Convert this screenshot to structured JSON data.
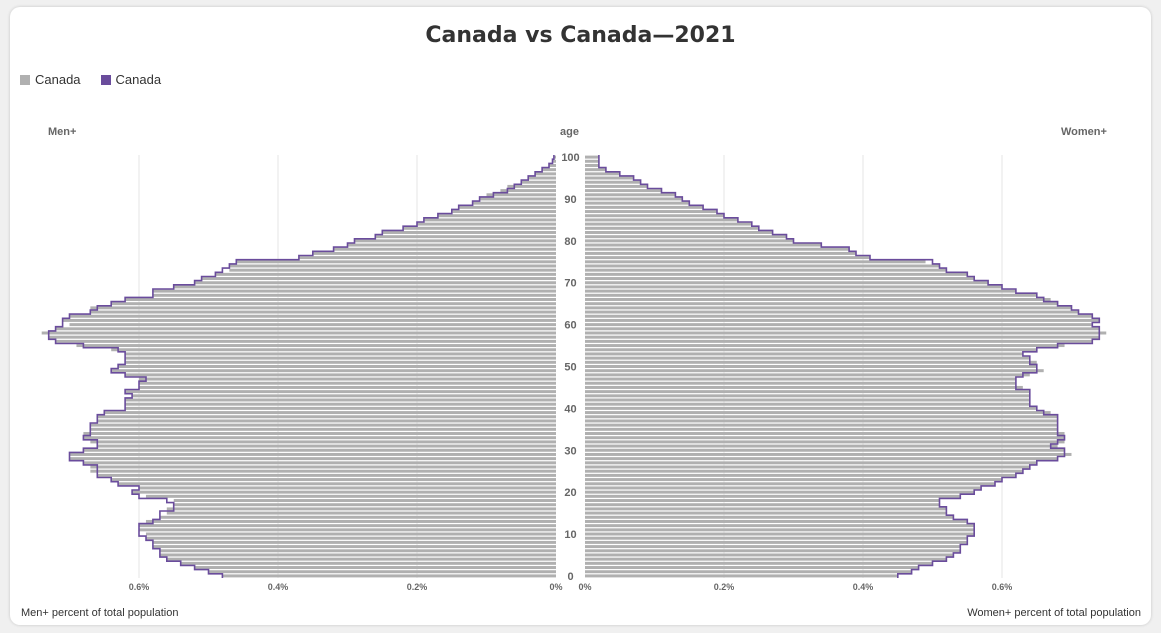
{
  "title": "Canada vs Canada—2021",
  "legend": [
    {
      "name": "Canada",
      "color": "#b0b0b0",
      "style": "filled"
    },
    {
      "name": "Canada",
      "color": "#6a4c9c",
      "style": "outline"
    }
  ],
  "headers": {
    "left": "Men+",
    "center": "age",
    "right": "Women+"
  },
  "footer": {
    "left": "Men+ percent of total population",
    "right": "Women+ percent of total population"
  },
  "chart_data": {
    "type": "bar",
    "orientation": "population-pyramid",
    "y_ticks": [
      "0",
      "10",
      "20",
      "30",
      "40",
      "50",
      "60",
      "70",
      "80",
      "90",
      "100"
    ],
    "x_ticks_left": [
      "0.6%",
      "0.4%",
      "0.2%",
      "0%"
    ],
    "x_ticks_right": [
      "0%",
      "0.2%",
      "0.4%",
      "0.6%"
    ],
    "xlim": [
      0,
      0.75
    ],
    "ages": [
      0,
      1,
      2,
      3,
      4,
      5,
      6,
      7,
      8,
      9,
      10,
      11,
      12,
      13,
      14,
      15,
      16,
      17,
      18,
      19,
      20,
      21,
      22,
      23,
      24,
      25,
      26,
      27,
      28,
      29,
      30,
      31,
      32,
      33,
      34,
      35,
      36,
      37,
      38,
      39,
      40,
      41,
      42,
      43,
      44,
      45,
      46,
      47,
      48,
      49,
      50,
      51,
      52,
      53,
      54,
      55,
      56,
      57,
      58,
      59,
      60,
      61,
      62,
      63,
      64,
      65,
      66,
      67,
      68,
      69,
      70,
      71,
      72,
      73,
      74,
      75,
      76,
      77,
      78,
      79,
      80,
      81,
      82,
      83,
      84,
      85,
      86,
      87,
      88,
      89,
      90,
      91,
      92,
      93,
      94,
      95,
      96,
      97,
      98,
      99,
      100
    ],
    "series": [
      {
        "name": "Canada",
        "side": "men",
        "values": [
          0.48,
          0.5,
          0.52,
          0.54,
          0.56,
          0.57,
          0.57,
          0.58,
          0.58,
          0.59,
          0.59,
          0.6,
          0.6,
          0.59,
          0.57,
          0.56,
          0.56,
          0.55,
          0.55,
          0.59,
          0.61,
          0.6,
          0.63,
          0.64,
          0.66,
          0.67,
          0.67,
          0.68,
          0.7,
          0.7,
          0.68,
          0.66,
          0.67,
          0.68,
          0.68,
          0.67,
          0.67,
          0.66,
          0.66,
          0.65,
          0.62,
          0.62,
          0.62,
          0.61,
          0.62,
          0.6,
          0.6,
          0.6,
          0.62,
          0.64,
          0.63,
          0.62,
          0.62,
          0.62,
          0.64,
          0.69,
          0.72,
          0.73,
          0.74,
          0.72,
          0.7,
          0.71,
          0.7,
          0.67,
          0.67,
          0.64,
          0.62,
          0.58,
          0.58,
          0.55,
          0.52,
          0.51,
          0.49,
          0.47,
          0.47,
          0.46,
          0.37,
          0.35,
          0.32,
          0.3,
          0.29,
          0.26,
          0.25,
          0.22,
          0.2,
          0.19,
          0.17,
          0.15,
          0.14,
          0.12,
          0.11,
          0.1,
          0.08,
          0.07,
          0.05,
          0.04,
          0.03,
          0.02,
          0.01,
          0.005,
          0.003
        ]
      },
      {
        "name": "Canada",
        "side": "women",
        "values": [
          0.45,
          0.47,
          0.48,
          0.5,
          0.52,
          0.53,
          0.54,
          0.54,
          0.55,
          0.55,
          0.56,
          0.56,
          0.56,
          0.55,
          0.53,
          0.52,
          0.52,
          0.51,
          0.51,
          0.54,
          0.56,
          0.57,
          0.59,
          0.6,
          0.62,
          0.63,
          0.64,
          0.65,
          0.68,
          0.7,
          0.69,
          0.68,
          0.69,
          0.69,
          0.69,
          0.68,
          0.68,
          0.68,
          0.68,
          0.67,
          0.65,
          0.64,
          0.64,
          0.64,
          0.64,
          0.63,
          0.62,
          0.62,
          0.64,
          0.66,
          0.65,
          0.65,
          0.64,
          0.63,
          0.65,
          0.69,
          0.73,
          0.74,
          0.75,
          0.74,
          0.73,
          0.74,
          0.73,
          0.71,
          0.7,
          0.68,
          0.67,
          0.65,
          0.62,
          0.6,
          0.58,
          0.56,
          0.55,
          0.52,
          0.51,
          0.49,
          0.41,
          0.39,
          0.38,
          0.34,
          0.3,
          0.29,
          0.27,
          0.25,
          0.24,
          0.22,
          0.2,
          0.19,
          0.17,
          0.15,
          0.14,
          0.13,
          0.11,
          0.09,
          0.08,
          0.07,
          0.05,
          0.03,
          0.02,
          0.02,
          0.02
        ]
      },
      {
        "name": "Canada",
        "side": "men",
        "style": "outline",
        "values": [
          0.48,
          0.5,
          0.52,
          0.54,
          0.56,
          0.57,
          0.57,
          0.58,
          0.58,
          0.59,
          0.6,
          0.6,
          0.6,
          0.58,
          0.57,
          0.57,
          0.55,
          0.55,
          0.56,
          0.6,
          0.61,
          0.6,
          0.63,
          0.64,
          0.66,
          0.66,
          0.66,
          0.68,
          0.7,
          0.7,
          0.68,
          0.66,
          0.66,
          0.68,
          0.67,
          0.67,
          0.67,
          0.66,
          0.66,
          0.65,
          0.62,
          0.62,
          0.62,
          0.61,
          0.62,
          0.6,
          0.6,
          0.59,
          0.62,
          0.64,
          0.63,
          0.62,
          0.62,
          0.62,
          0.63,
          0.68,
          0.72,
          0.73,
          0.73,
          0.72,
          0.71,
          0.71,
          0.7,
          0.67,
          0.66,
          0.64,
          0.62,
          0.58,
          0.58,
          0.55,
          0.52,
          0.51,
          0.49,
          0.48,
          0.47,
          0.46,
          0.37,
          0.35,
          0.32,
          0.3,
          0.29,
          0.26,
          0.25,
          0.22,
          0.2,
          0.19,
          0.17,
          0.15,
          0.14,
          0.12,
          0.11,
          0.09,
          0.07,
          0.06,
          0.05,
          0.04,
          0.03,
          0.02,
          0.01,
          0.005,
          0.003
        ]
      },
      {
        "name": "Canada",
        "side": "women",
        "style": "outline",
        "values": [
          0.45,
          0.47,
          0.48,
          0.5,
          0.52,
          0.53,
          0.54,
          0.54,
          0.55,
          0.55,
          0.56,
          0.56,
          0.56,
          0.55,
          0.53,
          0.52,
          0.52,
          0.51,
          0.51,
          0.54,
          0.56,
          0.57,
          0.59,
          0.6,
          0.62,
          0.63,
          0.64,
          0.65,
          0.68,
          0.69,
          0.69,
          0.67,
          0.68,
          0.69,
          0.68,
          0.68,
          0.68,
          0.68,
          0.68,
          0.66,
          0.65,
          0.64,
          0.64,
          0.64,
          0.64,
          0.62,
          0.62,
          0.62,
          0.63,
          0.65,
          0.65,
          0.64,
          0.64,
          0.63,
          0.65,
          0.68,
          0.73,
          0.74,
          0.74,
          0.74,
          0.73,
          0.74,
          0.73,
          0.71,
          0.7,
          0.68,
          0.66,
          0.65,
          0.62,
          0.6,
          0.58,
          0.56,
          0.55,
          0.52,
          0.51,
          0.5,
          0.41,
          0.39,
          0.38,
          0.34,
          0.3,
          0.29,
          0.27,
          0.25,
          0.24,
          0.22,
          0.2,
          0.19,
          0.17,
          0.15,
          0.14,
          0.13,
          0.11,
          0.09,
          0.08,
          0.07,
          0.05,
          0.03,
          0.02,
          0.02,
          0.02
        ]
      }
    ]
  }
}
